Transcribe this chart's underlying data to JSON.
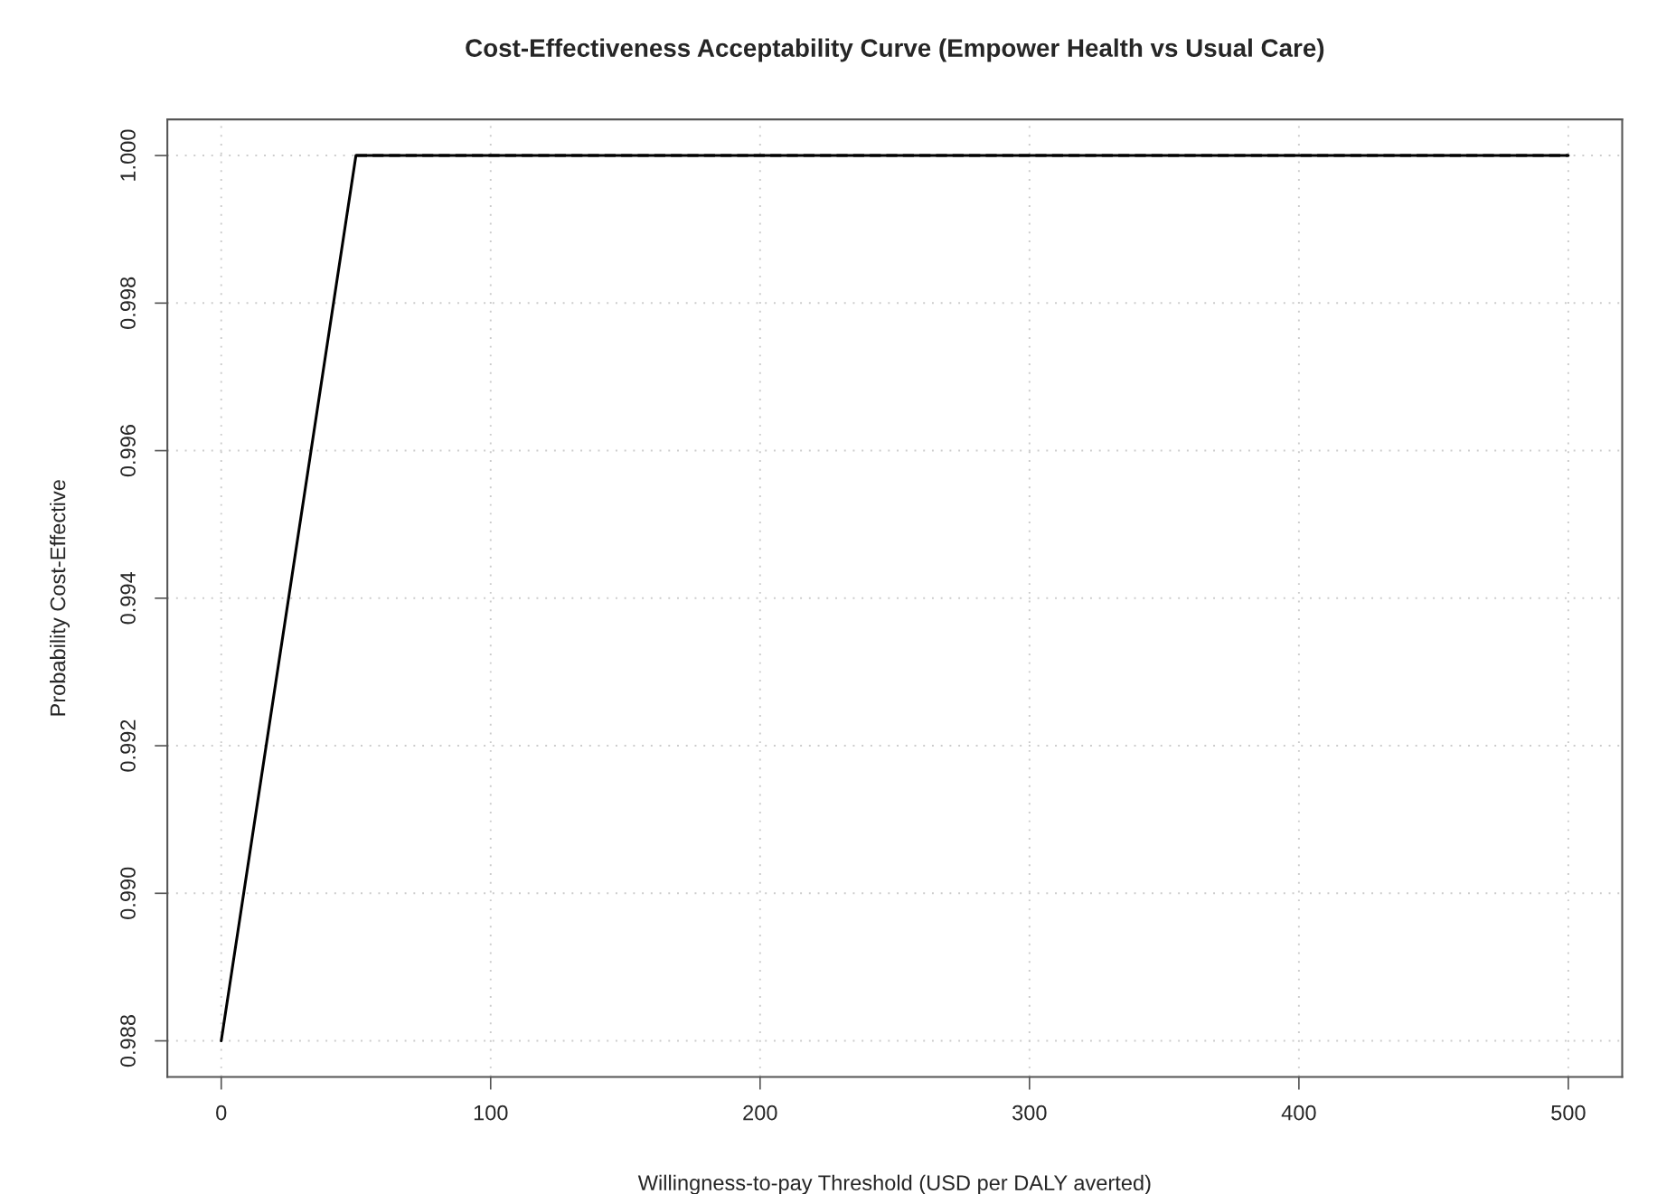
{
  "chart_data": {
    "type": "line",
    "title": "Cost-Effectiveness Acceptability Curve (Empower Health vs Usual Care)",
    "xlabel": "Willingness-to-pay Threshold (USD per DALY averted)",
    "ylabel": "Probability Cost-Effective",
    "series": [
      {
        "color": "#000000",
        "x": [
          0,
          50,
          500
        ],
        "values": [
          0.988,
          1.0,
          1.0
        ],
        "line_style": "solid"
      },
      {
        "color": "#000000",
        "x": [
          50,
          500
        ],
        "values": [
          1.0,
          1.0
        ],
        "line_style": "dashed"
      }
    ],
    "xlim": [
      -20,
      520
    ],
    "xticks": [
      0,
      100,
      200,
      300,
      400,
      500
    ],
    "ylim": [
      0.98751,
      1.00049
    ],
    "yticks": [
      {
        "value": 0.988,
        "label": "0.988"
      },
      {
        "value": 0.99,
        "label": "0.990"
      },
      {
        "value": 0.992,
        "label": "0.992"
      },
      {
        "value": 0.994,
        "label": "0.994"
      },
      {
        "value": 0.996,
        "label": "0.996"
      },
      {
        "value": 0.998,
        "label": "0.998"
      },
      {
        "value": 1.0,
        "label": "1.000"
      }
    ],
    "grid": true,
    "marker": "none"
  }
}
